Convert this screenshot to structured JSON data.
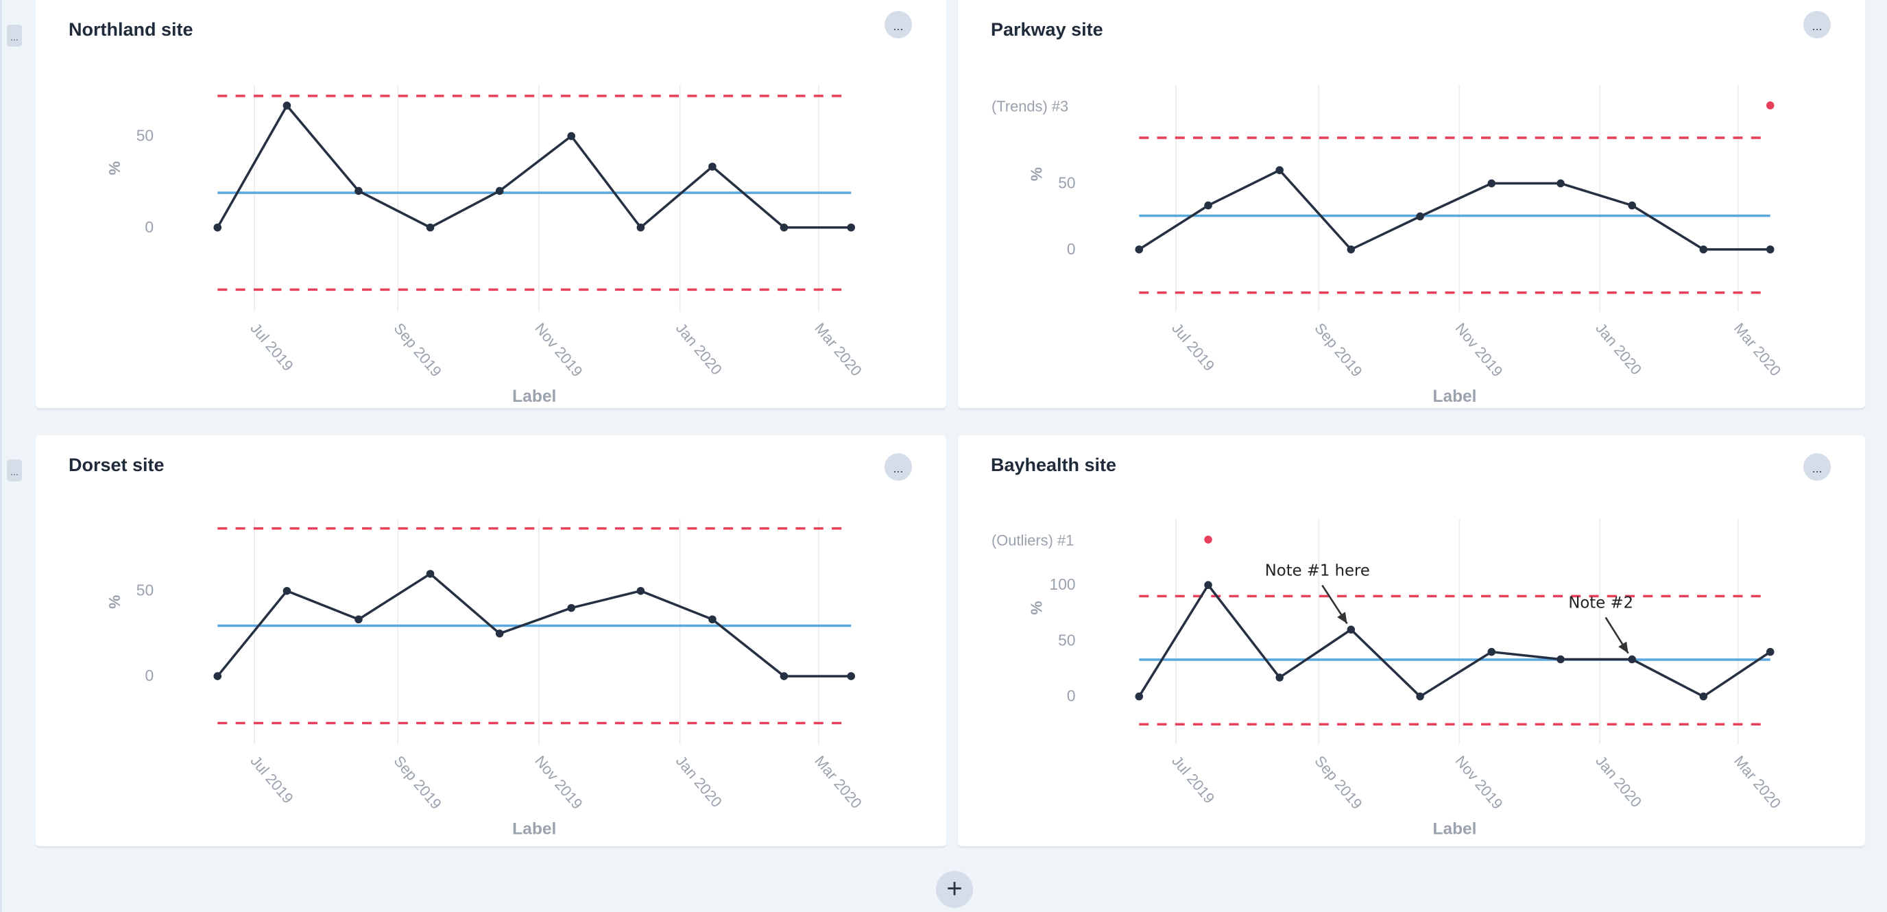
{
  "colors": {
    "line": "#253143",
    "center": "#5aa6de",
    "limits": "#e8405a",
    "grid": "#ececec",
    "tick": "#9aa2ad",
    "outlier": "#e8405a"
  },
  "toolbar": {
    "row_handle_label": "...",
    "add_button_icon": "plus-icon",
    "menu_label": "..."
  },
  "chart_data": [
    {
      "type": "line",
      "title": "Northland site",
      "xlabel": "Label",
      "ylabel": "%",
      "x": [
        "2019-06-15",
        "2019-07-15",
        "2019-08-15",
        "2019-09-15",
        "2019-10-15",
        "2019-11-15",
        "2019-12-15",
        "2020-01-15",
        "2020-02-15",
        "2020-03-15"
      ],
      "values": [
        0,
        66.7,
        20,
        0,
        20,
        50,
        0,
        33.3,
        0,
        0
      ],
      "center": 19,
      "ucl": 72,
      "lcl": -34,
      "ylim": [
        -46,
        78
      ],
      "yticks": [
        0,
        50
      ],
      "xticks": [
        {
          "date": "2019-07-01",
          "label": "Jul 2019"
        },
        {
          "date": "2019-09-01",
          "label": "Sep 2019"
        },
        {
          "date": "2019-11-01",
          "label": "Nov 2019"
        },
        {
          "date": "2020-01-01",
          "label": "Jan 2020"
        },
        {
          "date": "2020-03-01",
          "label": "Mar 2020"
        }
      ],
      "markers": null,
      "notes": []
    },
    {
      "type": "line",
      "title": "Parkway site",
      "xlabel": "Label",
      "ylabel": "%",
      "x": [
        "2019-06-15",
        "2019-07-15",
        "2019-08-15",
        "2019-09-15",
        "2019-10-15",
        "2019-11-15",
        "2019-12-15",
        "2020-01-15",
        "2020-02-15",
        "2020-03-15"
      ],
      "values": [
        0,
        33.3,
        60,
        0,
        25,
        50,
        50,
        33.3,
        0,
        0
      ],
      "center": 25.5,
      "ucl": 84.5,
      "lcl": -32.7,
      "ylim": [
        -47,
        124.5
      ],
      "yticks": [
        0,
        50
      ],
      "xticks": [
        {
          "date": "2019-07-01",
          "label": "Jul 2019"
        },
        {
          "date": "2019-09-01",
          "label": "Sep 2019"
        },
        {
          "date": "2019-11-01",
          "label": "Nov 2019"
        },
        {
          "date": "2020-01-01",
          "label": "Jan 2020"
        },
        {
          "date": "2020-03-01",
          "label": "Mar 2020"
        }
      ],
      "markers": {
        "label": "(Trends) #3",
        "points": [
          9
        ]
      },
      "notes": []
    },
    {
      "type": "line",
      "title": "Dorset site",
      "xlabel": "Label",
      "ylabel": "%",
      "x": [
        "2019-06-15",
        "2019-07-15",
        "2019-08-15",
        "2019-09-15",
        "2019-10-15",
        "2019-11-15",
        "2019-12-15",
        "2020-01-15",
        "2020-02-15",
        "2020-03-15"
      ],
      "values": [
        0,
        50,
        33.3,
        60,
        25,
        40,
        50,
        33.3,
        0,
        0
      ],
      "center": 29.6,
      "ucl": 86.6,
      "lcl": -27.5,
      "ylim": [
        -40,
        92
      ],
      "yticks": [
        0,
        50
      ],
      "xticks": [
        {
          "date": "2019-07-01",
          "label": "Jul 2019"
        },
        {
          "date": "2019-09-01",
          "label": "Sep 2019"
        },
        {
          "date": "2019-11-01",
          "label": "Nov 2019"
        },
        {
          "date": "2020-01-01",
          "label": "Jan 2020"
        },
        {
          "date": "2020-03-01",
          "label": "Mar 2020"
        }
      ],
      "markers": null,
      "notes": []
    },
    {
      "type": "line",
      "title": "Bayhealth site",
      "xlabel": "Label",
      "ylabel": "%",
      "x": [
        "2019-06-15",
        "2019-07-15",
        "2019-08-15",
        "2019-09-15",
        "2019-10-15",
        "2019-11-15",
        "2019-12-15",
        "2020-01-15",
        "2020-02-15",
        "2020-03-15"
      ],
      "values": [
        0,
        100,
        17,
        60,
        0,
        40,
        33.3,
        33.3,
        0,
        40
      ],
      "center": 33,
      "ucl": 90,
      "lcl": -25,
      "ylim": [
        -43,
        159
      ],
      "yticks": [
        0,
        50,
        100
      ],
      "xticks": [
        {
          "date": "2019-07-01",
          "label": "Jul 2019"
        },
        {
          "date": "2019-09-01",
          "label": "Sep 2019"
        },
        {
          "date": "2019-11-01",
          "label": "Nov 2019"
        },
        {
          "date": "2020-01-01",
          "label": "Jan 2020"
        },
        {
          "date": "2020-03-01",
          "label": "Mar 2020"
        }
      ],
      "markers": {
        "label": "(Outliers) #1",
        "points": [
          1
        ]
      },
      "notes": [
        {
          "text": "Note #1 here",
          "point": 3
        },
        {
          "text": "Note #2",
          "point": 7
        }
      ]
    }
  ]
}
